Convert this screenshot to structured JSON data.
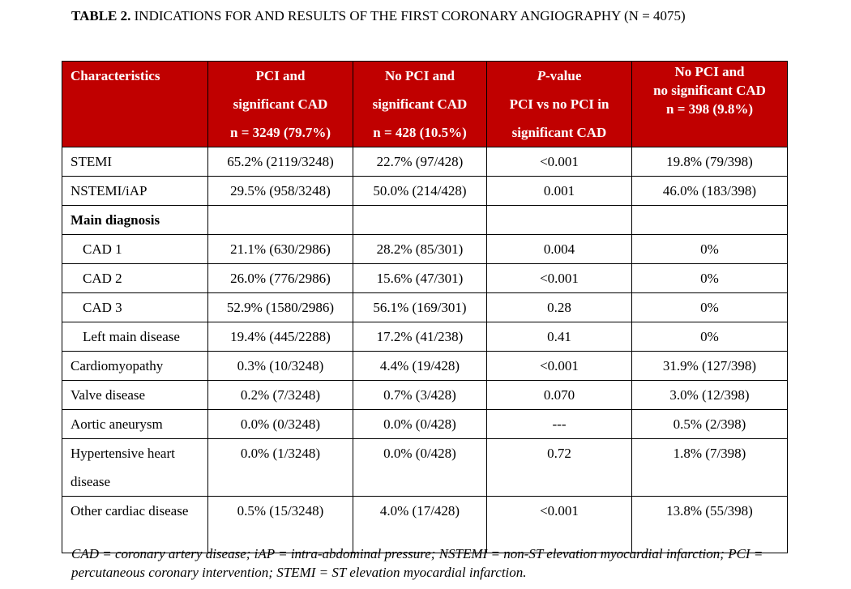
{
  "title": {
    "label": "TABLE 2.",
    "text": " INDICATIONS FOR AND RESULTS OF THE FIRST CORONARY ANGIOGRAPHY (N = 4075)"
  },
  "header_color": "#C00000",
  "columns": [
    {
      "lines": [
        "Characteristics"
      ]
    },
    {
      "lines": [
        "PCI and",
        "significant CAD",
        "n = 3249 (79.7%)"
      ]
    },
    {
      "lines": [
        "No PCI and",
        "significant CAD",
        "n = 428 (10.5%)"
      ]
    },
    {
      "lines": [
        "P-value",
        "PCI vs no PCI in",
        "significant CAD"
      ],
      "italic_prefix": "P"
    },
    {
      "lines": [
        "No PCI and",
        "no significant CAD",
        "n = 398 (9.8%)"
      ]
    }
  ],
  "rows": [
    {
      "cells": [
        "STEMI",
        "65.2% (2119/3248)",
        "22.7% (97/428)",
        "<0.001",
        "19.8% (79/398)"
      ]
    },
    {
      "cells": [
        "NSTEMI/iAP",
        "29.5% (958/3248)",
        "50.0% (214/428)",
        "0.001",
        "46.0% (183/398)"
      ]
    },
    {
      "cells": [
        "Main diagnosis",
        "",
        "",
        "",
        ""
      ],
      "bold": true
    },
    {
      "cells": [
        "CAD 1",
        "21.1% (630/2986)",
        "28.2% (85/301)",
        "0.004",
        "0%"
      ],
      "sub": true
    },
    {
      "cells": [
        "CAD 2",
        "26.0% (776/2986)",
        "15.6% (47/301)",
        "<0.001",
        "0%"
      ],
      "sub": true
    },
    {
      "cells": [
        "CAD 3",
        "52.9% (1580/2986)",
        "56.1% (169/301)",
        "0.28",
        "0%"
      ],
      "sub": true
    },
    {
      "cells": [
        "Left main disease",
        "19.4% (445/2288)",
        "17.2% (41/238)",
        "0.41",
        "0%"
      ],
      "sub": true
    },
    {
      "cells": [
        "Cardiomyopathy",
        "0.3% (10/3248)",
        "4.4% (19/428)",
        "<0.001",
        "31.9% (127/398)"
      ]
    },
    {
      "cells": [
        "Valve disease",
        "0.2% (7/3248)",
        "0.7% (3/428)",
        "0.070",
        "3.0% (12/398)"
      ]
    },
    {
      "cells": [
        "Aortic aneurysm",
        "0.0% (0/3248)",
        "0.0% (0/428)",
        "---",
        "0.5% (2/398)"
      ]
    },
    {
      "cells": [
        "Hypertensive heart disease",
        "0.0% (1/3248)",
        "0.0% (0/428)",
        "0.72",
        "1.8% (7/398)"
      ],
      "tall": true
    },
    {
      "cells": [
        "Other cardiac disease",
        "0.5% (15/3248)",
        "4.0% (17/428)",
        "<0.001",
        "13.8% (55/398)"
      ],
      "tall": true
    }
  ],
  "footnote": "CAD = coronary artery disease; iAP = intra-abdominal pressure; NSTEMI = non-ST elevation myocardial infarction; PCI = percutaneous coronary intervention; STEMI = ST elevation myocardial infarction."
}
